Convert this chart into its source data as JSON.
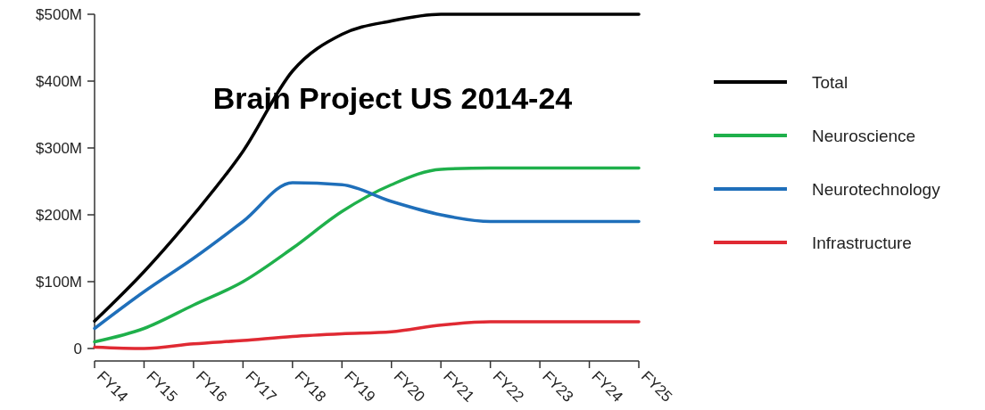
{
  "chart_data": {
    "type": "line",
    "title": "Brain Project US 2014-24",
    "categories": [
      "FY14",
      "FY15",
      "FY16",
      "FY17",
      "FY18",
      "FY19",
      "FY20",
      "FY21",
      "FY22",
      "FY23",
      "FY24",
      "FY25"
    ],
    "series": [
      {
        "name": "Total",
        "color": "#000000",
        "values": [
          41,
          115,
          200,
          295,
          415,
          470,
          490,
          500,
          500,
          500,
          500,
          500
        ]
      },
      {
        "name": "Neuroscience",
        "color": "#1fb04b",
        "values": [
          10,
          30,
          65,
          100,
          150,
          205,
          245,
          268,
          270,
          270,
          270,
          270
        ]
      },
      {
        "name": "Neurotechnology",
        "color": "#1f6fba",
        "values": [
          30,
          85,
          135,
          190,
          248,
          245,
          220,
          200,
          190,
          190,
          190,
          190
        ]
      },
      {
        "name": "Infrastructure",
        "color": "#e02a33",
        "values": [
          2,
          0,
          7,
          12,
          18,
          22,
          25,
          35,
          40,
          40,
          40,
          40
        ]
      }
    ],
    "ylim": [
      0,
      500
    ],
    "yticks": [
      0,
      {
        "value": 100,
        "label": "$100M"
      },
      {
        "value": 200,
        "label": "$200M"
      },
      {
        "value": 300,
        "label": "$300M"
      },
      {
        "value": 400,
        "label": "$400M"
      },
      {
        "value": 500,
        "label": "$500M"
      }
    ],
    "grid": false,
    "legend": "right",
    "marker": "none",
    "line_style": "solid"
  }
}
